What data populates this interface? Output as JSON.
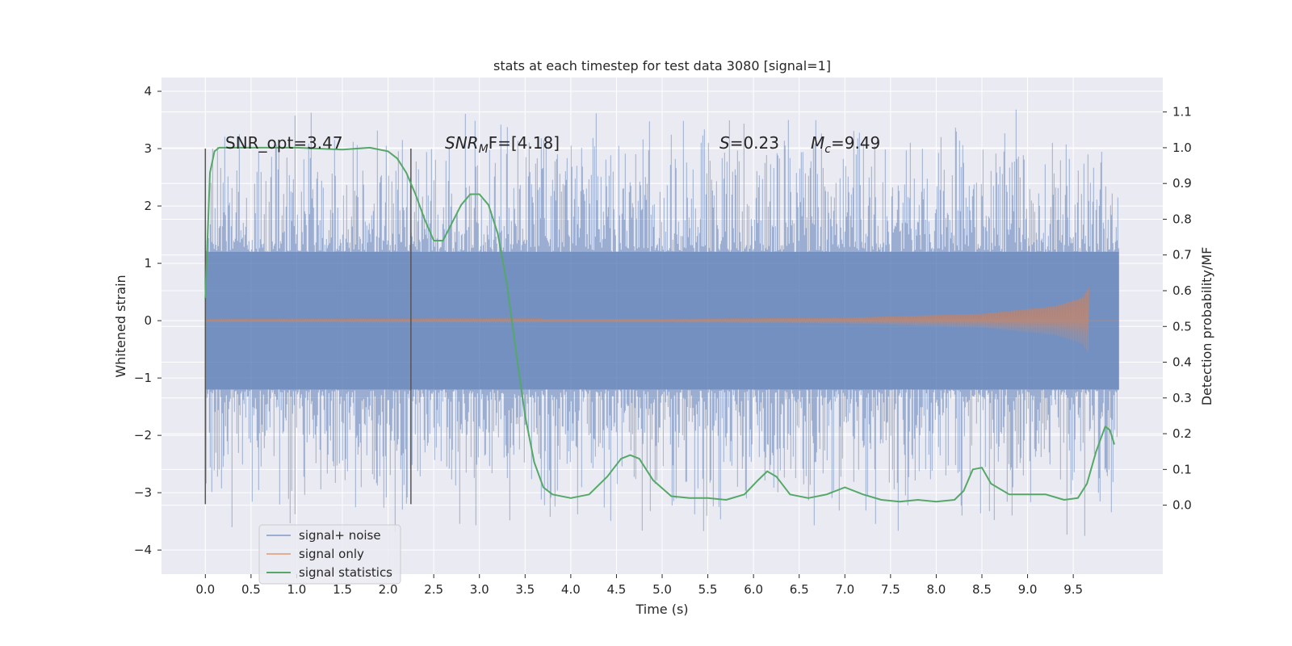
{
  "chart_data": {
    "type": "line",
    "title": "stats at each timestep for test data 3080 [signal=1]",
    "xlabel": "Time (s)",
    "ylabel_left": "Whitened strain",
    "ylabel_right": "Detection probability/MF",
    "xlim": [
      -0.48,
      10.48
    ],
    "ylim_left": [
      -4.42,
      4.24
    ],
    "ylim_right": [
      -0.1929,
      1.1964
    ],
    "x_ticks": [
      "0.0",
      "0.5",
      "1.0",
      "1.5",
      "2.0",
      "2.5",
      "3.0",
      "3.5",
      "4.0",
      "4.5",
      "5.0",
      "5.5",
      "6.0",
      "6.5",
      "7.0",
      "7.5",
      "8.0",
      "8.5",
      "9.0",
      "9.5"
    ],
    "y_ticks_left": [
      "−4",
      "−3",
      "−2",
      "−1",
      "0",
      "1",
      "2",
      "3",
      "4"
    ],
    "y_ticks_right": [
      "0.0",
      "0.1",
      "0.2",
      "0.3",
      "0.4",
      "0.5",
      "0.6",
      "0.7",
      "0.8",
      "0.9",
      "1.0",
      "1.1"
    ],
    "grid": true,
    "legend_position": "lower-left",
    "series": [
      {
        "name": "signal+ noise",
        "color": "#4c72b0",
        "axis": "left",
        "x_range": [
          0,
          10
        ],
        "envelope_core": 1.2,
        "envelope_peak": 3.8,
        "min": -4.1,
        "max": 3.87
      },
      {
        "name": "signal only",
        "color": "#dd8452",
        "axis": "left",
        "x_range": [
          0,
          9.67
        ],
        "amplitude_points": [
          [
            0,
            0.02
          ],
          [
            5.0,
            0.03
          ],
          [
            7.0,
            0.05
          ],
          [
            8.5,
            0.12
          ],
          [
            9.3,
            0.25
          ],
          [
            9.6,
            0.4
          ],
          [
            9.67,
            0.58
          ]
        ]
      },
      {
        "name": "signal statistics",
        "color": "#55a868",
        "axis": "right",
        "x": [
          0.0,
          0.05,
          0.1,
          0.15,
          0.2,
          0.3,
          0.5,
          1.0,
          1.5,
          1.8,
          2.0,
          2.1,
          2.2,
          2.3,
          2.4,
          2.5,
          2.6,
          2.7,
          2.8,
          2.9,
          3.0,
          3.1,
          3.2,
          3.3,
          3.4,
          3.5,
          3.6,
          3.7,
          3.8,
          4.0,
          4.2,
          4.4,
          4.55,
          4.65,
          4.75,
          4.9,
          5.1,
          5.3,
          5.5,
          5.7,
          5.9,
          6.05,
          6.15,
          6.25,
          6.4,
          6.6,
          6.8,
          7.0,
          7.2,
          7.4,
          7.6,
          7.8,
          8.0,
          8.2,
          8.3,
          8.4,
          8.5,
          8.6,
          8.8,
          9.0,
          9.2,
          9.4,
          9.55,
          9.65,
          9.75,
          9.85,
          9.9,
          9.95
        ],
        "y": [
          0.58,
          0.93,
          0.99,
          1.0,
          1.0,
          1.0,
          1.0,
          1.0,
          0.995,
          1.0,
          0.99,
          0.97,
          0.93,
          0.87,
          0.8,
          0.74,
          0.74,
          0.79,
          0.84,
          0.87,
          0.87,
          0.84,
          0.76,
          0.62,
          0.43,
          0.25,
          0.12,
          0.05,
          0.03,
          0.02,
          0.03,
          0.08,
          0.13,
          0.14,
          0.13,
          0.07,
          0.025,
          0.02,
          0.02,
          0.015,
          0.03,
          0.07,
          0.095,
          0.08,
          0.03,
          0.02,
          0.03,
          0.05,
          0.03,
          0.015,
          0.01,
          0.015,
          0.01,
          0.015,
          0.04,
          0.1,
          0.105,
          0.06,
          0.03,
          0.03,
          0.03,
          0.015,
          0.02,
          0.06,
          0.15,
          0.22,
          0.21,
          0.17
        ]
      }
    ],
    "vertical_markers": [
      0.0,
      2.25
    ],
    "annotations": {
      "snr_opt": "SNR_opt=3.47",
      "snr_mf_base": "SNR",
      "snr_mf_sub": "M",
      "snr_mf_rest": "F=[4.18]",
      "s_label": "S",
      "s_value": "=0.23",
      "mc_label": "M",
      "mc_sub": "c",
      "mc_value": "=9.49"
    },
    "colors": {
      "plot_background": "#eaeaf2",
      "grid": "#ffffff"
    }
  }
}
